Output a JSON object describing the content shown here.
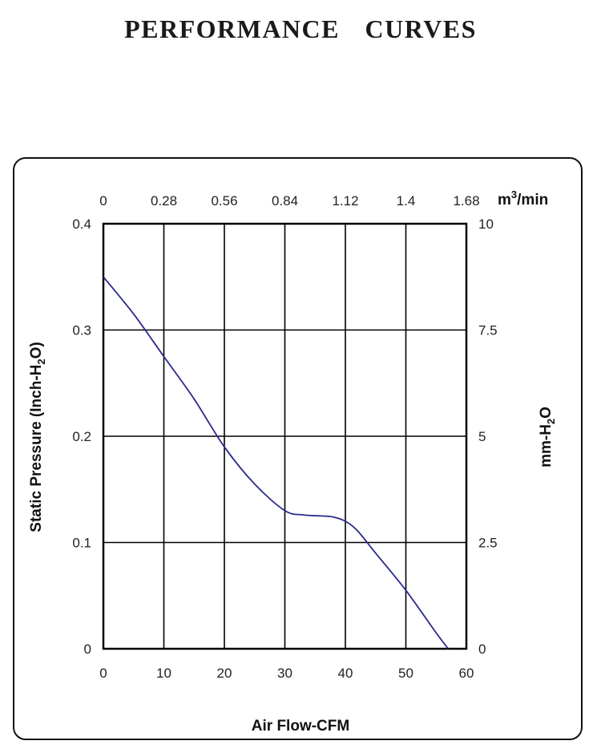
{
  "page": {
    "title": "PERFORMANCE    CURVES"
  },
  "chart_data": {
    "type": "line",
    "xlabel": "Air Flow-CFM",
    "ylabel_left": "Static Pressure (Inch-H2O)",
    "ylabel_right": "mm-H2O",
    "x2label": "m3/min",
    "xlim": [
      0,
      60
    ],
    "ylim": [
      0,
      0.4
    ],
    "x_ticks": [
      "0",
      "10",
      "20",
      "30",
      "40",
      "50",
      "60"
    ],
    "y_ticks": [
      "0",
      "0.1",
      "0.2",
      "0.3",
      "0.4"
    ],
    "x2_ticks": [
      "0",
      "0.28",
      "0.56",
      "0.84",
      "1.12",
      "1.4",
      "1.68"
    ],
    "y2_ticks": [
      "0",
      "2.5",
      "5",
      "7.5",
      "10"
    ],
    "grid": true,
    "line_color": "#2a2a8c",
    "series": [
      {
        "x": [
          0,
          5,
          10,
          15,
          20,
          25,
          30,
          33,
          36,
          38,
          40,
          42,
          45,
          50,
          55,
          57
        ],
        "values": [
          0.35,
          0.315,
          0.275,
          0.235,
          0.19,
          0.155,
          0.13,
          0.126,
          0.125,
          0.124,
          0.12,
          0.111,
          0.09,
          0.055,
          0.015,
          0
        ]
      }
    ]
  }
}
